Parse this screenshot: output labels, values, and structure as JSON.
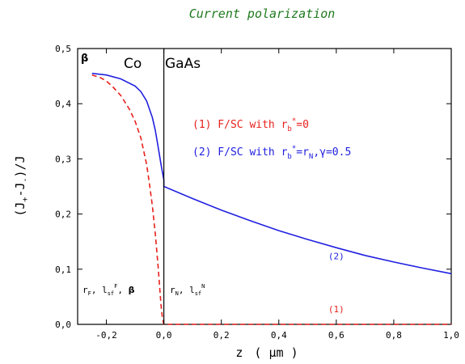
{
  "chart_data": {
    "type": "line",
    "title": "Current polarization",
    "xlabel": "z",
    "xlabel_unit": "( μm )",
    "ylabel_main": "(J",
    "ylabel_sub1": "+",
    "ylabel_mid": "-J",
    "ylabel_sub2": "-",
    "ylabel_end": ")/J",
    "xlim": [
      -0.3,
      1.0
    ],
    "ylim": [
      0.0,
      0.5
    ],
    "x_ticks": [
      -0.2,
      0.0,
      0.2,
      0.4,
      0.6,
      0.8,
      1.0
    ],
    "x_tick_labels": [
      "-0,2",
      "0,0",
      "0,2",
      "0,4",
      "0,6",
      "0,8",
      "1,0"
    ],
    "y_ticks": [
      0.0,
      0.1,
      0.2,
      0.3,
      0.4,
      0.5
    ],
    "y_tick_labels": [
      "0,0",
      "0,1",
      "0,2",
      "0,3",
      "0,4",
      "0,5"
    ],
    "interface_x": 0.0,
    "region_labels": {
      "left": "Co",
      "right": "GaAs"
    },
    "corner_label": "β",
    "bottom_labels": {
      "left": {
        "r1": "r",
        "s1": "F",
        "sep1": ", ",
        "l": "l",
        "s2": "sf",
        "sup2": "F",
        "sep2": ", ",
        "beta": "β"
      },
      "right": {
        "r1": "r",
        "s1": "N",
        "sep1": ", ",
        "l": "l",
        "s2": "sf",
        "sup2": "N"
      }
    },
    "legend": {
      "entry1": {
        "prefix": "(1) F/SC with r",
        "sub": "b",
        "sup": "*",
        "suffix": "=0"
      },
      "entry2": {
        "prefix": "(2) F/SC with r",
        "sub": "b",
        "sup": "*",
        "mid": "=r",
        "sub2": "N",
        "suffix": ",γ=0.5"
      }
    },
    "series": [
      {
        "label": "(1)",
        "color": "#e8201c",
        "dash": "dashed",
        "x": [
          -0.25,
          -0.22,
          -0.2,
          -0.18,
          -0.15,
          -0.12,
          -0.1,
          -0.08,
          -0.06,
          -0.05,
          -0.04,
          -0.03,
          -0.02,
          -0.015,
          -0.01,
          -0.005,
          0.0,
          0.0,
          1.0
        ],
        "y": [
          0.452,
          0.447,
          0.441,
          0.432,
          0.415,
          0.39,
          0.368,
          0.338,
          0.29,
          0.255,
          0.215,
          0.165,
          0.105,
          0.07,
          0.035,
          0.012,
          0.0,
          0.0,
          0.0
        ]
      },
      {
        "label": "(2)",
        "color": "#2020e0",
        "dash": "solid",
        "x": [
          -0.25,
          -0.2,
          -0.15,
          -0.1,
          -0.08,
          -0.06,
          -0.04,
          -0.03,
          -0.02,
          -0.01,
          0.0,
          0.0,
          0.1,
          0.2,
          0.3,
          0.4,
          0.5,
          0.6,
          0.7,
          0.8,
          0.9,
          1.0
        ],
        "y": [
          0.455,
          0.452,
          0.445,
          0.432,
          0.422,
          0.405,
          0.375,
          0.352,
          0.322,
          0.29,
          0.262,
          0.25,
          0.228,
          0.207,
          0.188,
          0.17,
          0.154,
          0.139,
          0.125,
          0.113,
          0.102,
          0.092
        ]
      }
    ],
    "series_labels_positions_data": [
      {
        "text": "(2)",
        "x": 0.6,
        "y": 0.118,
        "color": "#2020e0"
      },
      {
        "text": "(1)",
        "x": 0.6,
        "y": 0.022,
        "color": "#e8201c"
      }
    ],
    "colors": {
      "axis": "#000000",
      "title": "#1f7a1f",
      "red": "#e8201c",
      "blue": "#2020e0"
    }
  }
}
